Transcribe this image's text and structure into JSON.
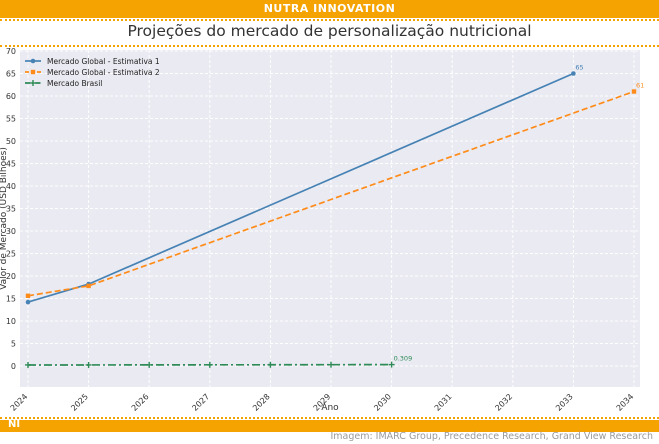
{
  "header": {
    "brand": "NUTRA INNOVATION"
  },
  "title": "Projeções do mercado de personalização nutricional",
  "footer": {
    "logo_text": "NI",
    "credit": "Imagem: IMARC Group, Precedence Research, Grand View Research"
  },
  "colors": {
    "accent": "#f5a300",
    "series1": "#4682b4",
    "series2": "#ff8c1a",
    "series3": "#2e8b57"
  },
  "chart_data": {
    "type": "line",
    "xlabel": "Ano",
    "ylabel": "Valor de Mercado (USD Bilhões)",
    "xlim": [
      2024,
      2034
    ],
    "ylim": [
      0,
      70
    ],
    "x_ticks": [
      "2024",
      "2025",
      "2026",
      "2027",
      "2028",
      "2029",
      "2030",
      "2031",
      "2032",
      "2033",
      "2034"
    ],
    "y_ticks": [
      0,
      5,
      10,
      15,
      20,
      25,
      30,
      35,
      40,
      45,
      50,
      55,
      60,
      65,
      70
    ],
    "grid": true,
    "legend_position": "top-left",
    "series": [
      {
        "name": "Mercado Global - Estimativa 1",
        "style": "solid",
        "marker": "circle",
        "x": [
          2024,
          2025,
          2033
        ],
        "y": [
          14.2,
          18.2,
          65
        ],
        "end_label": "65"
      },
      {
        "name": "Mercado Global - Estimativa 2",
        "style": "dashed",
        "marker": "square",
        "x": [
          2024,
          2025,
          2034
        ],
        "y": [
          15.6,
          17.8,
          61
        ],
        "end_label": "61"
      },
      {
        "name": "Mercado Brasil",
        "style": "dashdot",
        "marker": "plus",
        "x": [
          2024,
          2025,
          2026,
          2027,
          2028,
          2029,
          2030
        ],
        "y": [
          0.23,
          0.23,
          0.25,
          0.26,
          0.27,
          0.29,
          0.309
        ],
        "end_label": "0.309"
      }
    ]
  }
}
